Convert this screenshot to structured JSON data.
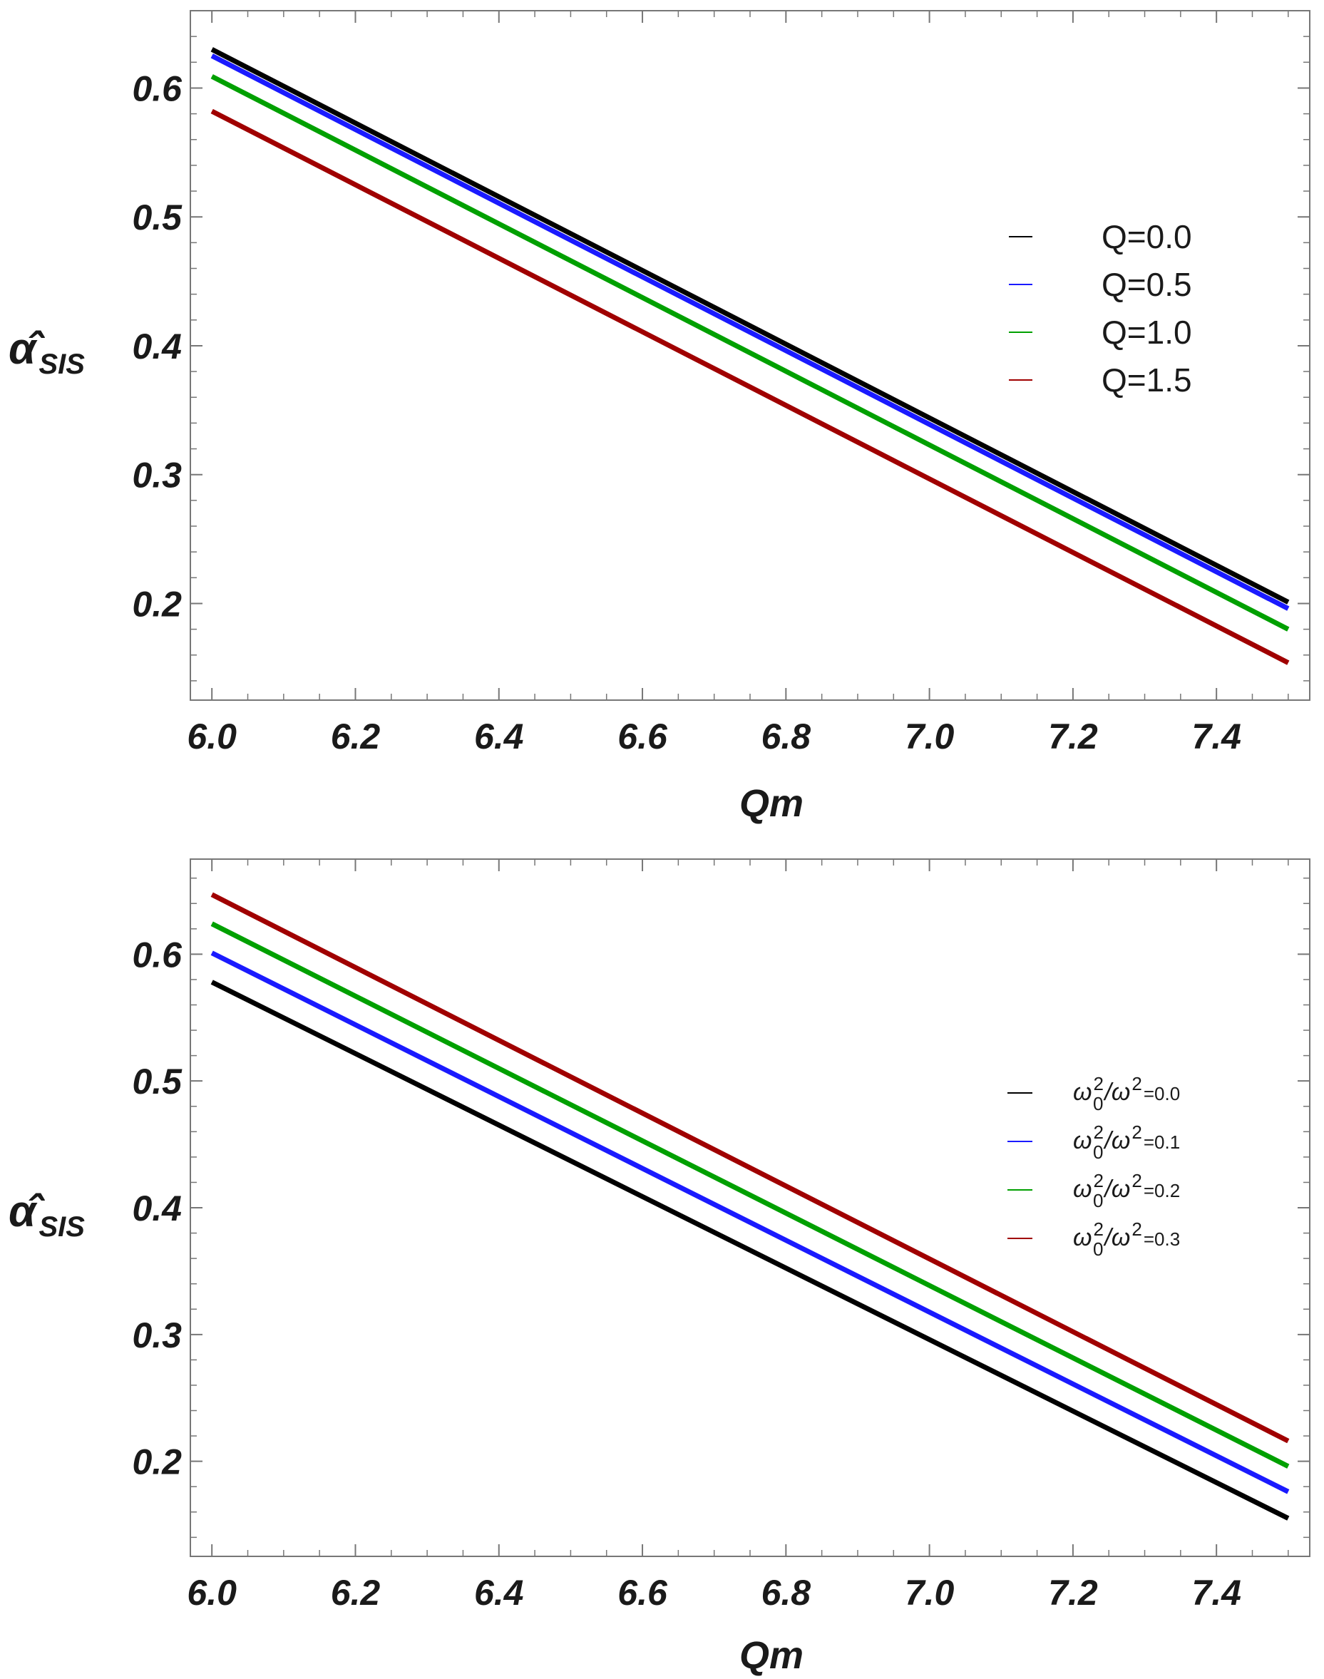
{
  "chart_data": [
    {
      "type": "line",
      "title": "",
      "xlabel": "Qm",
      "ylabel": "α̂ SIS",
      "ylabel_main": "α̂",
      "ylabel_sub": "SIS",
      "xlim": [
        5.97,
        7.53
      ],
      "ylim": [
        0.125,
        0.66
      ],
      "xticks": [
        6.0,
        6.2,
        6.4,
        6.6,
        6.8,
        7.0,
        7.2,
        7.4
      ],
      "xtick_labels": [
        "6.0",
        "6.2",
        "6.4",
        "6.6",
        "6.8",
        "7.0",
        "7.2",
        "7.4"
      ],
      "yticks": [
        0.2,
        0.3,
        0.4,
        0.5,
        0.6
      ],
      "ytick_labels": [
        "0.2",
        "0.3",
        "0.4",
        "0.5",
        "0.6"
      ],
      "legend_position": "right",
      "series": [
        {
          "name": "Q=0.0",
          "label_main": "Q=0.0",
          "color": "#000000",
          "x": [
            6.0,
            7.5
          ],
          "values": [
            0.63,
            0.201
          ]
        },
        {
          "name": "Q=0.5",
          "label_main": "Q=0.5",
          "color": "#1a1aff",
          "x": [
            6.0,
            7.5
          ],
          "values": [
            0.625,
            0.196
          ]
        },
        {
          "name": "Q=1.0",
          "label_main": "Q=1.0",
          "color": "#00a000",
          "x": [
            6.0,
            7.5
          ],
          "values": [
            0.609,
            0.18
          ]
        },
        {
          "name": "Q=1.5",
          "label_main": "Q=1.5",
          "color": "#a00000",
          "x": [
            6.0,
            7.5
          ],
          "values": [
            0.582,
            0.154
          ]
        }
      ]
    },
    {
      "type": "line",
      "title": "",
      "xlabel": "Qm",
      "ylabel": "α̂ SIS",
      "ylabel_main": "α̂",
      "ylabel_sub": "SIS",
      "xlim": [
        5.97,
        7.53
      ],
      "ylim": [
        0.125,
        0.675
      ],
      "xticks": [
        6.0,
        6.2,
        6.4,
        6.6,
        6.8,
        7.0,
        7.2,
        7.4
      ],
      "xtick_labels": [
        "6.0",
        "6.2",
        "6.4",
        "6.6",
        "6.8",
        "7.0",
        "7.2",
        "7.4"
      ],
      "yticks": [
        0.2,
        0.3,
        0.4,
        0.5,
        0.6
      ],
      "ytick_labels": [
        "0.2",
        "0.3",
        "0.4",
        "0.5",
        "0.6"
      ],
      "legend_position": "right",
      "series": [
        {
          "name": "ω0²/ω²=0.0",
          "label_main": "ω",
          "label_sup": "2",
          "label_sub": "0",
          "label_mid": "/ω",
          "label_sup2": "2",
          "label_tail": "=0.0",
          "color": "#000000",
          "x": [
            6.0,
            7.5
          ],
          "values": [
            0.578,
            0.155
          ]
        },
        {
          "name": "ω0²/ω²=0.1",
          "label_main": "ω",
          "label_sup": "2",
          "label_sub": "0",
          "label_mid": "/ω",
          "label_sup2": "2",
          "label_tail": "=0.1",
          "color": "#1a1aff",
          "x": [
            6.0,
            7.5
          ],
          "values": [
            0.601,
            0.176
          ]
        },
        {
          "name": "ω0²/ω²=0.2",
          "label_main": "ω",
          "label_sup": "2",
          "label_sub": "0",
          "label_mid": "/ω",
          "label_sup2": "2",
          "label_tail": "=0.2",
          "color": "#00a000",
          "x": [
            6.0,
            7.5
          ],
          "values": [
            0.624,
            0.196
          ]
        },
        {
          "name": "ω0²/ω²=0.3",
          "label_main": "ω",
          "label_sup": "2",
          "label_sub": "0",
          "label_mid": "/ω",
          "label_sup2": "2",
          "label_tail": "=0.3",
          "color": "#a00000",
          "x": [
            6.0,
            7.5
          ],
          "values": [
            0.647,
            0.216
          ]
        }
      ]
    }
  ]
}
